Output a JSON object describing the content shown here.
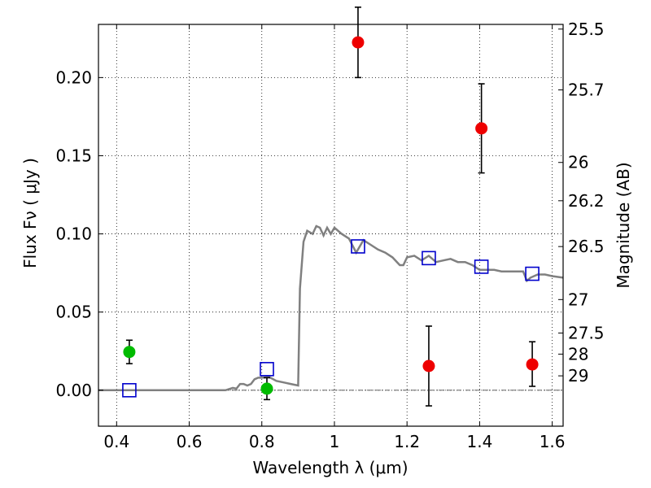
{
  "chart_data": {
    "type": "scatter",
    "xlabel": "Wavelength  λ (μm)",
    "ylabel": "Flux  Fν  ( μJy )",
    "ylabel_right": "Magnitude (AB)",
    "xlim": [
      0.35,
      1.63
    ],
    "ylim": [
      -0.023,
      0.234
    ],
    "x_ticks": [
      0.4,
      0.6,
      0.8,
      1.0,
      1.2,
      1.4,
      1.6
    ],
    "x_tick_labels": [
      "0.4",
      "0.6",
      "0.8",
      "1",
      "1.2",
      "1.4",
      "1.6"
    ],
    "y_ticks": [
      0.0,
      0.05,
      0.1,
      0.15,
      0.2
    ],
    "y_tick_labels": [
      "0.00",
      "0.05",
      "0.10",
      "0.15",
      "0.20"
    ],
    "right_ticks": [
      {
        "label": "25.5",
        "flux": 0.231
      },
      {
        "label": "25.7",
        "flux": 0.1921
      },
      {
        "label": "26",
        "flux": 0.1457
      },
      {
        "label": "26.2",
        "flux": 0.1212
      },
      {
        "label": "26.5",
        "flux": 0.0919
      },
      {
        "label": "27",
        "flux": 0.058
      },
      {
        "label": "27.5",
        "flux": 0.0366
      },
      {
        "label": "28",
        "flux": 0.0231
      },
      {
        "label": "29",
        "flux": 0.0092
      }
    ],
    "grid": true,
    "template_spectrum": {
      "name": "",
      "color": "#808080",
      "points": [
        [
          0.35,
          0.0
        ],
        [
          0.6,
          0.0
        ],
        [
          0.7,
          0.0
        ],
        [
          0.72,
          0.0015
        ],
        [
          0.73,
          0.001
        ],
        [
          0.74,
          0.004
        ],
        [
          0.75,
          0.004
        ],
        [
          0.76,
          0.003
        ],
        [
          0.77,
          0.004
        ],
        [
          0.78,
          0.007
        ],
        [
          0.79,
          0.008
        ],
        [
          0.8,
          0.008
        ],
        [
          0.82,
          0.0085
        ],
        [
          0.84,
          0.006
        ],
        [
          0.86,
          0.005
        ],
        [
          0.88,
          0.004
        ],
        [
          0.9,
          0.003
        ],
        [
          0.905,
          0.065
        ],
        [
          0.915,
          0.095
        ],
        [
          0.925,
          0.102
        ],
        [
          0.94,
          0.1
        ],
        [
          0.95,
          0.105
        ],
        [
          0.96,
          0.104
        ],
        [
          0.97,
          0.099
        ],
        [
          0.98,
          0.104
        ],
        [
          0.99,
          0.1
        ],
        [
          1.0,
          0.104
        ],
        [
          1.02,
          0.1
        ],
        [
          1.04,
          0.097
        ],
        [
          1.06,
          0.088
        ],
        [
          1.08,
          0.096
        ],
        [
          1.1,
          0.093
        ],
        [
          1.12,
          0.09
        ],
        [
          1.14,
          0.088
        ],
        [
          1.16,
          0.085
        ],
        [
          1.18,
          0.08
        ],
        [
          1.19,
          0.08
        ],
        [
          1.2,
          0.085
        ],
        [
          1.22,
          0.086
        ],
        [
          1.24,
          0.083
        ],
        [
          1.26,
          0.086
        ],
        [
          1.28,
          0.082
        ],
        [
          1.3,
          0.083
        ],
        [
          1.32,
          0.084
        ],
        [
          1.34,
          0.082
        ],
        [
          1.36,
          0.082
        ],
        [
          1.38,
          0.08
        ],
        [
          1.4,
          0.077
        ],
        [
          1.42,
          0.077
        ],
        [
          1.44,
          0.077
        ],
        [
          1.46,
          0.076
        ],
        [
          1.48,
          0.076
        ],
        [
          1.5,
          0.076
        ],
        [
          1.52,
          0.076
        ],
        [
          1.53,
          0.07
        ],
        [
          1.54,
          0.072
        ],
        [
          1.56,
          0.074
        ],
        [
          1.58,
          0.074
        ],
        [
          1.6,
          0.073
        ],
        [
          1.63,
          0.072
        ]
      ]
    },
    "model_points": {
      "name": "",
      "color": "#0000cc",
      "marker": "square",
      "x": [
        0.435,
        0.814,
        1.065,
        1.26,
        1.405,
        1.545
      ],
      "y": [
        0.0,
        0.0135,
        0.092,
        0.0845,
        0.079,
        0.0745
      ]
    },
    "observed_green": {
      "name": "",
      "color": "#00bb00",
      "x": [
        0.435,
        0.814
      ],
      "y": [
        0.0245,
        0.001
      ],
      "err_low": [
        0.0075,
        0.007
      ],
      "err_high": [
        0.0075,
        0.007
      ]
    },
    "observed_red": {
      "name": "",
      "color": "#ee0000",
      "x": [
        1.065,
        1.26,
        1.405,
        1.545
      ],
      "y": [
        0.2225,
        0.0155,
        0.1675,
        0.0165
      ],
      "err_low": [
        0.0225,
        0.0255,
        0.0285,
        0.014
      ],
      "err_high": [
        0.0225,
        0.0255,
        0.0285,
        0.0145
      ]
    }
  }
}
